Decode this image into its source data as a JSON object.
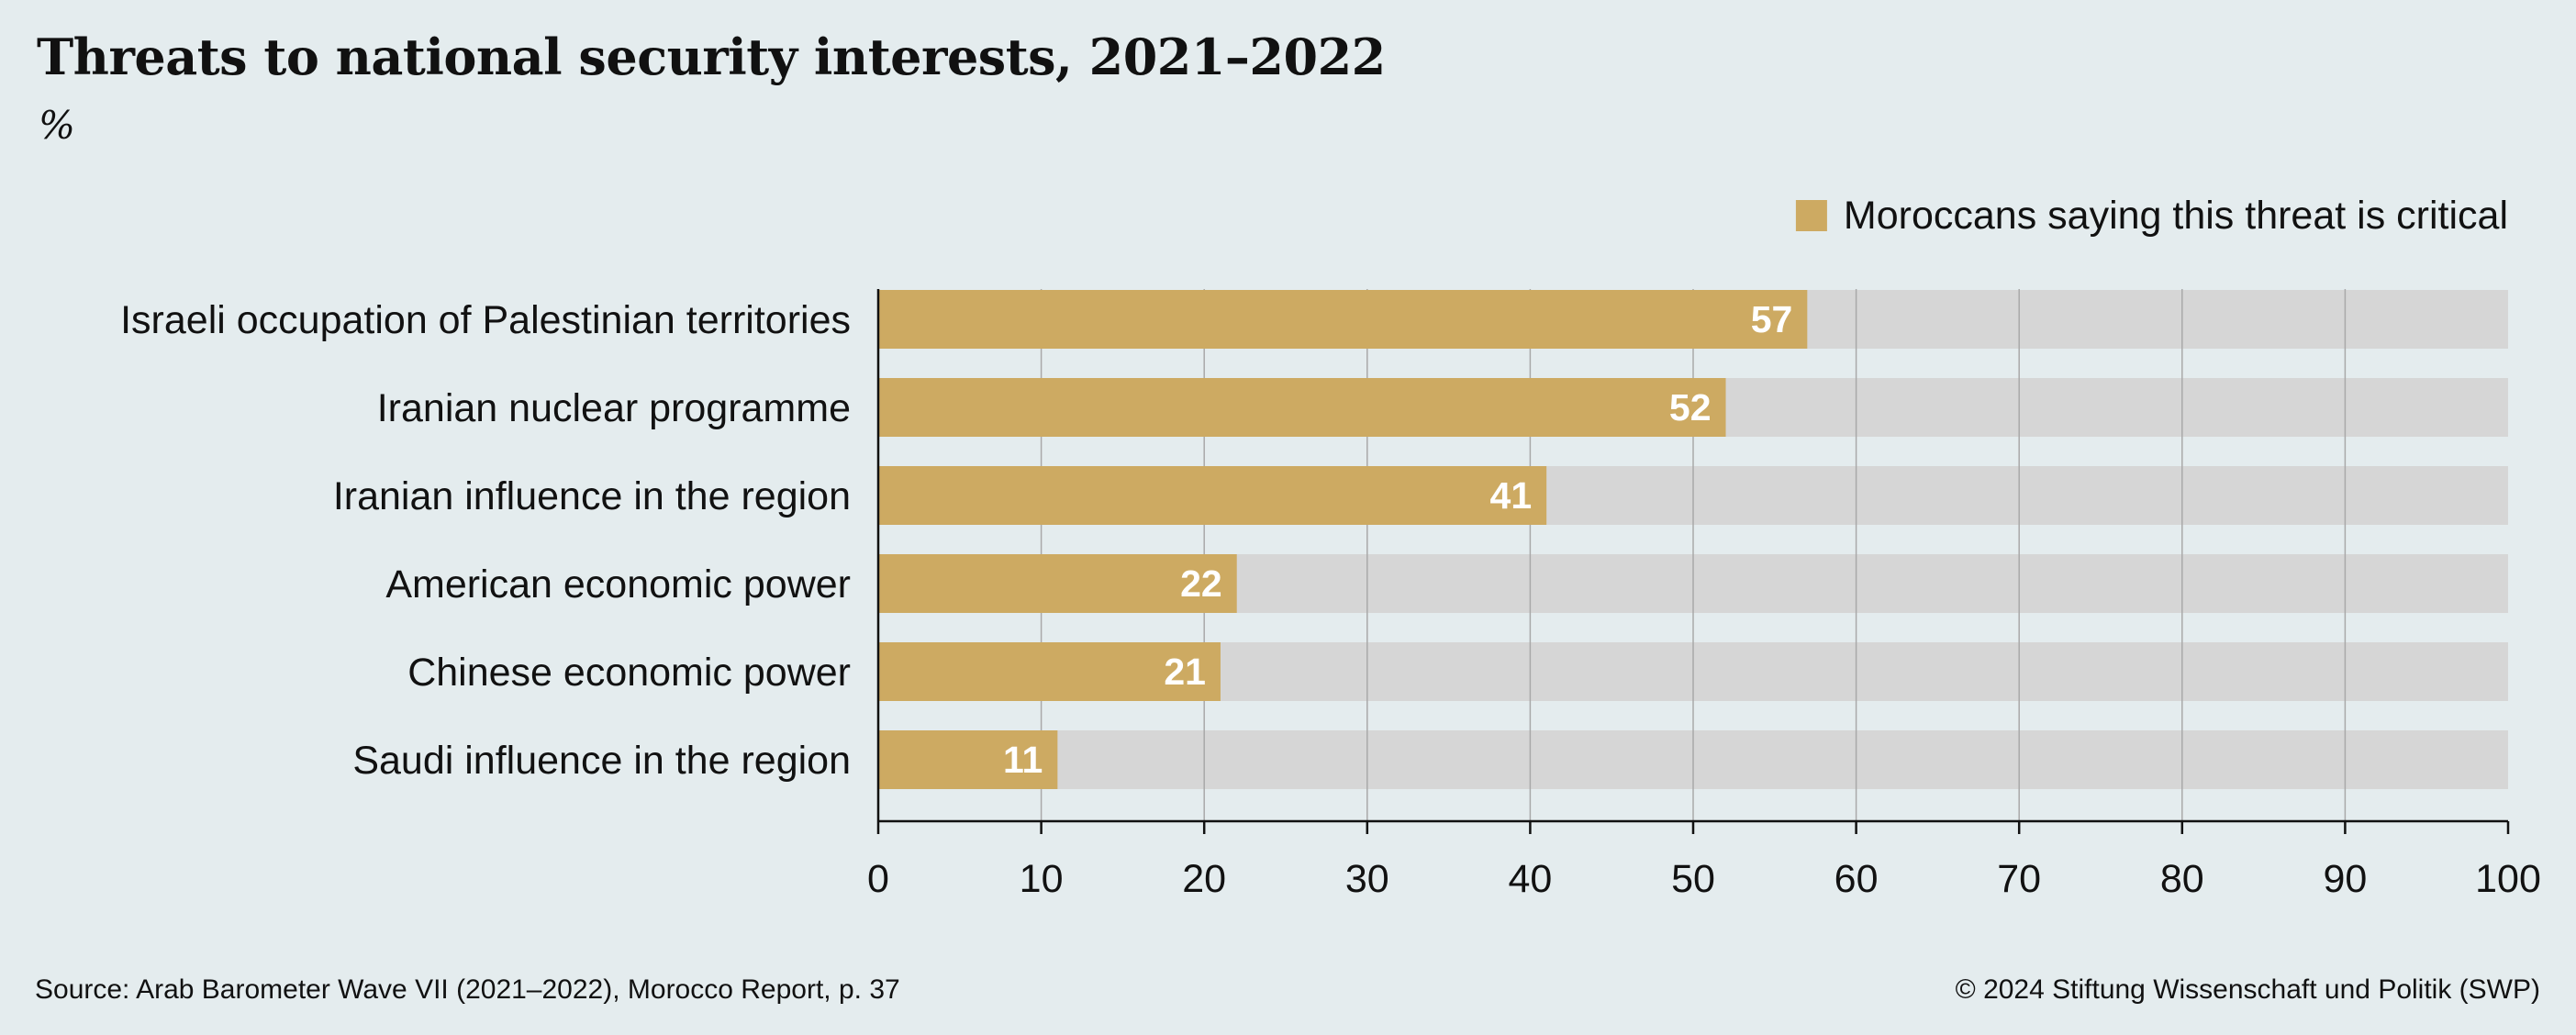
{
  "chart_data": {
    "type": "bar",
    "orientation": "horizontal",
    "title": "Threats to national security interests, 2021–2022",
    "subtitle": "%",
    "categories": [
      "Israeli occupation of Palestinian territories",
      "Iranian nuclear programme",
      "Iranian influence in the region",
      "American economic power",
      "Chinese economic power",
      "Saudi influence in the region"
    ],
    "series": [
      {
        "name": "Moroccans saying this threat is critical",
        "values": [
          57,
          52,
          41,
          22,
          21,
          11
        ],
        "color": "#cdaa62"
      }
    ],
    "background_bar_color": "#d6d6d6",
    "xlim": [
      0,
      100
    ],
    "xticks": [
      0,
      10,
      20,
      30,
      40,
      50,
      60,
      70,
      80,
      90,
      100
    ],
    "grid": "vertical",
    "legend_position": "top-right",
    "data_labels": true
  },
  "footer": {
    "source": "Source: Arab Barometer Wave VII (2021–2022), Morocco Report, p. 37",
    "copyright": "© 2024 Stiftung Wissenschaft und Politik (SWP)"
  }
}
